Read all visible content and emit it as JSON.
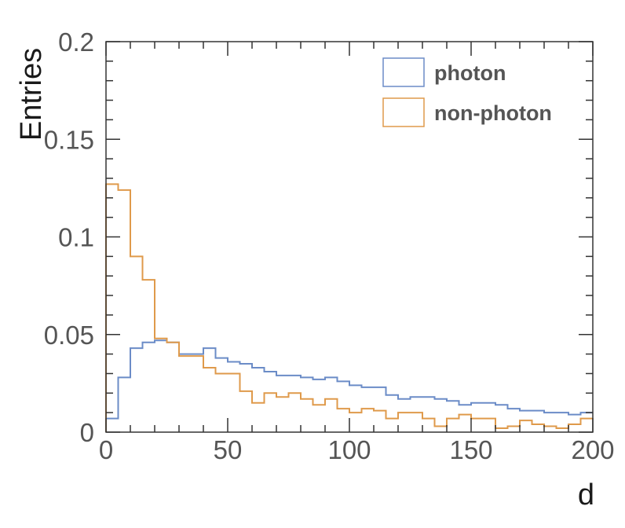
{
  "chart_data": {
    "type": "histogram",
    "title": "",
    "xlabel": "d",
    "ylabel": "Entries",
    "xlim": [
      0,
      200
    ],
    "ylim": [
      0,
      0.2
    ],
    "xticks": [
      0,
      50,
      100,
      150,
      200
    ],
    "xtick_labels": [
      "0",
      "50",
      "100",
      "150",
      "200"
    ],
    "yticks": [
      0,
      0.05,
      0.1,
      0.15,
      0.2
    ],
    "ytick_labels": [
      "0",
      "0.05",
      "0.1",
      "0.15",
      "0.2"
    ],
    "grid": false,
    "legend_position": "top-right",
    "bin_edges": [
      0,
      5,
      10,
      15,
      20,
      25,
      30,
      35,
      40,
      45,
      50,
      55,
      60,
      65,
      70,
      75,
      80,
      85,
      90,
      95,
      100,
      105,
      110,
      115,
      120,
      125,
      130,
      135,
      140,
      145,
      150,
      155,
      160,
      165,
      170,
      175,
      180,
      185,
      190,
      195,
      200
    ],
    "series": [
      {
        "name": "photon",
        "color": "#6b8cc7",
        "values": [
          0.007,
          0.028,
          0.043,
          0.046,
          0.047,
          0.046,
          0.04,
          0.04,
          0.043,
          0.038,
          0.036,
          0.035,
          0.033,
          0.031,
          0.029,
          0.029,
          0.028,
          0.027,
          0.028,
          0.026,
          0.024,
          0.023,
          0.023,
          0.019,
          0.017,
          0.018,
          0.018,
          0.017,
          0.016,
          0.014,
          0.015,
          0.015,
          0.014,
          0.012,
          0.011,
          0.011,
          0.01,
          0.01,
          0.009,
          0.01
        ]
      },
      {
        "name": "non-photon",
        "color": "#df9a4b",
        "values": [
          0.127,
          0.124,
          0.09,
          0.078,
          0.048,
          0.046,
          0.039,
          0.039,
          0.033,
          0.03,
          0.03,
          0.021,
          0.015,
          0.02,
          0.018,
          0.02,
          0.017,
          0.014,
          0.017,
          0.012,
          0.01,
          0.012,
          0.011,
          0.007,
          0.01,
          0.01,
          0.007,
          0.003,
          0.007,
          0.009,
          0.007,
          0.007,
          0.002,
          0.003,
          0.006,
          0.004,
          0.003,
          0.002,
          0.004,
          0.007
        ]
      }
    ]
  }
}
